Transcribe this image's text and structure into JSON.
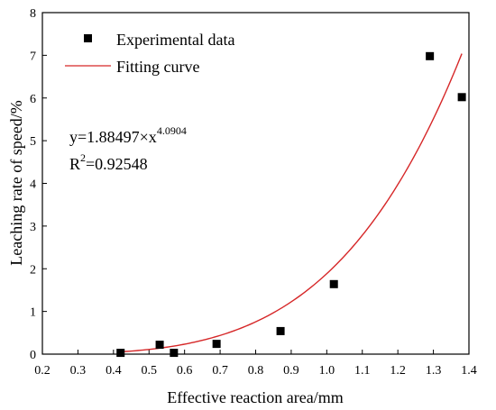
{
  "chart_data": {
    "type": "scatter",
    "title": "",
    "xlabel": "Effective reaction area/mm",
    "ylabel": "Leaching rate of speed/%",
    "xlim": [
      0.2,
      1.4
    ],
    "ylim": [
      0,
      8
    ],
    "x_ticks": [
      0.2,
      0.3,
      0.4,
      0.5,
      0.6,
      0.7,
      0.8,
      0.9,
      1.0,
      1.1,
      1.2,
      1.3,
      1.4
    ],
    "x_tick_labels": [
      "0.2",
      "0.3",
      "0.4",
      "0.5",
      "0.6",
      "0.7",
      "0.8",
      "0.9",
      "1.0",
      "1.1",
      "1.2",
      "1.3",
      "1.4"
    ],
    "y_ticks": [
      0,
      1,
      2,
      3,
      4,
      5,
      6,
      7,
      8
    ],
    "y_tick_labels": [
      "0",
      "1",
      "2",
      "3",
      "4",
      "5",
      "6",
      "7",
      "8"
    ],
    "grid": false,
    "legend_position": "top-left",
    "series": [
      {
        "name": "Experimental data",
        "kind": "scatter",
        "marker": "square",
        "color": "#000000",
        "points": [
          {
            "x": 0.42,
            "y": 0.03
          },
          {
            "x": 0.53,
            "y": 0.22
          },
          {
            "x": 0.57,
            "y": 0.03
          },
          {
            "x": 0.69,
            "y": 0.24
          },
          {
            "x": 0.87,
            "y": 0.54
          },
          {
            "x": 1.02,
            "y": 1.64
          },
          {
            "x": 1.29,
            "y": 6.98
          },
          {
            "x": 1.38,
            "y": 6.02
          }
        ]
      },
      {
        "name": "Fitting curve",
        "kind": "line",
        "color": "#d62728",
        "formula": {
          "a": 1.88497,
          "b": 4.0904
        },
        "x_range": [
          0.42,
          1.38
        ]
      }
    ],
    "annotations": {
      "equation_base": "y=1.88497×x",
      "equation_exponent": "4.0904",
      "r2_prefix": "R",
      "r2_exponent": "2",
      "r2_value": "=0.92548"
    }
  }
}
